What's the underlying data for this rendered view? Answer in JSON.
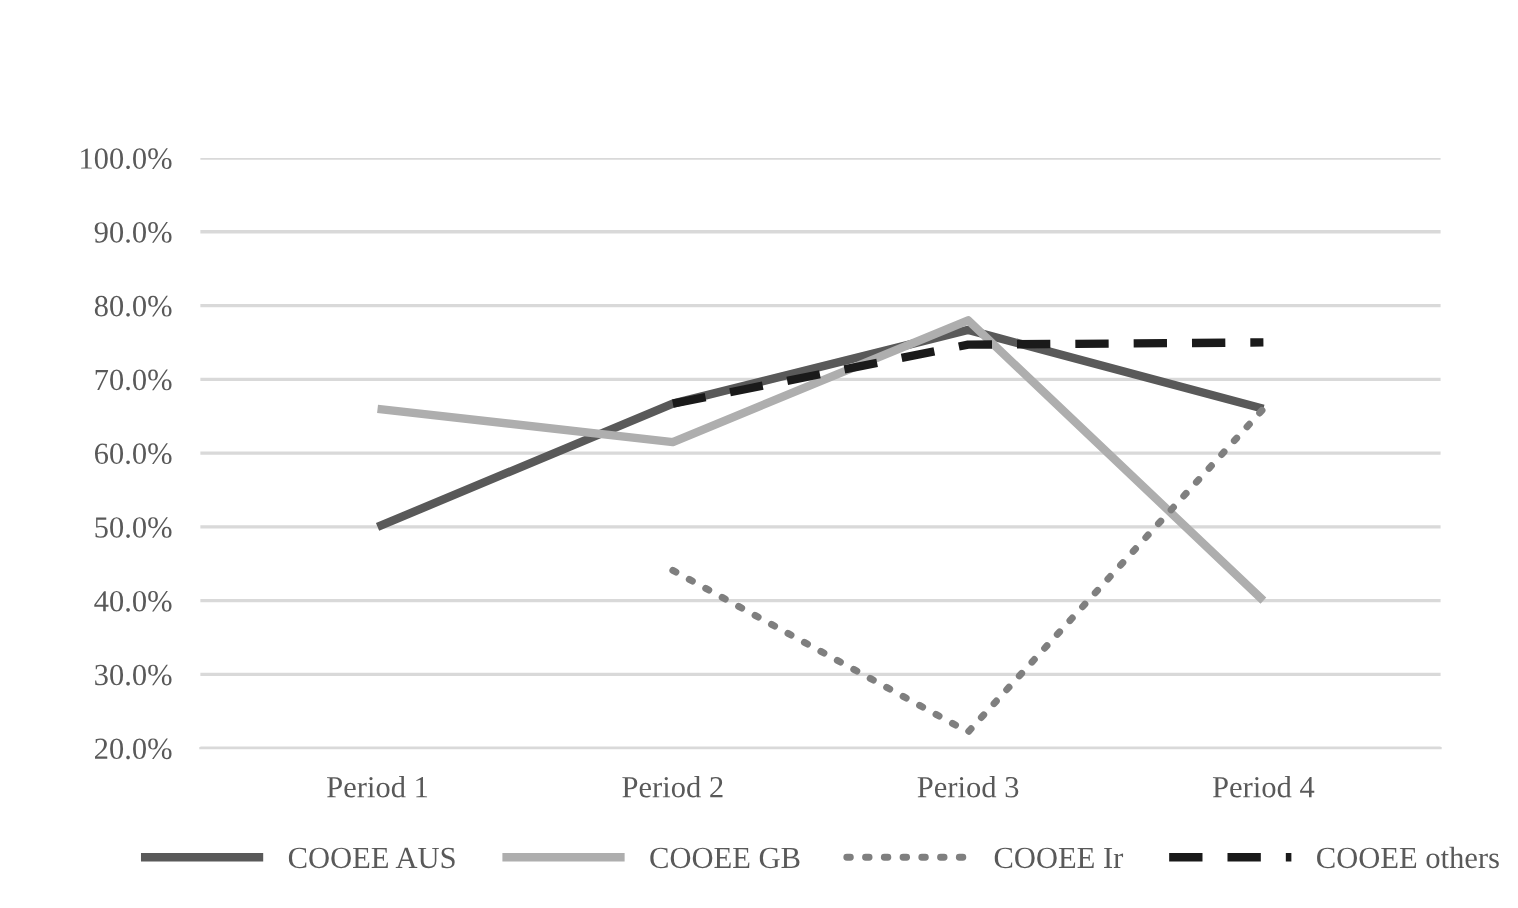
{
  "chart_data": {
    "type": "line",
    "categories": [
      "Period 1",
      "Period 2",
      "Period 3",
      "Period 4"
    ],
    "series": [
      {
        "name": "COOEE AUS",
        "color": "#595959",
        "values": [
          50.0,
          66.7,
          76.7,
          66.0
        ],
        "line_style": "solid"
      },
      {
        "name": "COOEE GB",
        "color": "#aeaeae",
        "values": [
          66.0,
          61.5,
          78.0,
          40.0
        ],
        "line_style": "solid"
      },
      {
        "name": "COOEE Ir",
        "color": "#7f7f7f",
        "values": [
          null,
          44.1,
          22.2,
          66.0
        ],
        "line_style": "dotted"
      },
      {
        "name": "COOEE others",
        "color": "#1a1a1a",
        "values": [
          null,
          66.7,
          74.7,
          75.0
        ],
        "line_style": "dashed"
      }
    ],
    "ylim": [
      20,
      100
    ],
    "yticks": [
      {
        "value": 20,
        "label": "20.0%"
      },
      {
        "value": 30,
        "label": "30.0%"
      },
      {
        "value": 40,
        "label": "40.0%"
      },
      {
        "value": 50,
        "label": "50.0%"
      },
      {
        "value": 60,
        "label": "60.0%"
      },
      {
        "value": 70,
        "label": "70.0%"
      },
      {
        "value": 80,
        "label": "80.0%"
      },
      {
        "value": 90,
        "label": "90.0%"
      },
      {
        "value": 100,
        "label": "100.0%"
      }
    ],
    "grid": "y",
    "legend": "bottom",
    "marker": "none"
  }
}
